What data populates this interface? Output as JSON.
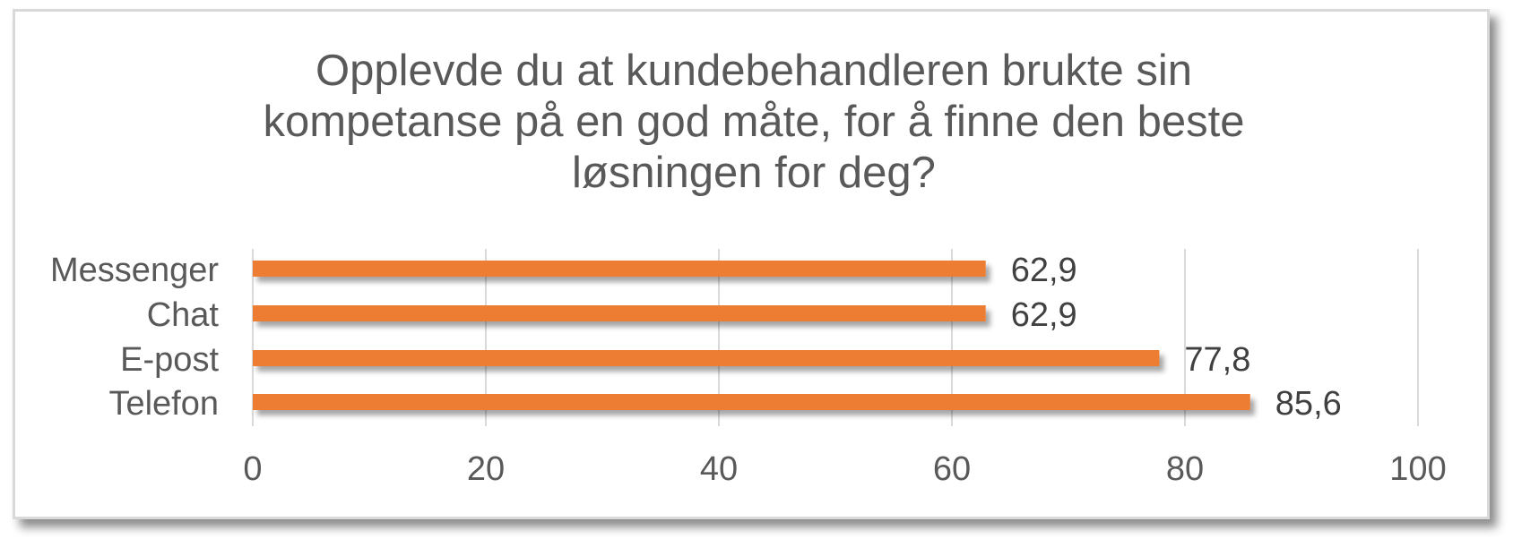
{
  "chart_data": {
    "type": "bar",
    "orientation": "horizontal",
    "title_lines": [
      "Opplevde du at kundebehandleren brukte sin",
      "kompetanse på en god måte, for å finne den beste",
      "løsningen for deg?"
    ],
    "categories": [
      "Messenger",
      "Chat",
      "E-post",
      "Telefon"
    ],
    "values": [
      62.9,
      62.9,
      77.8,
      85.6
    ],
    "data_labels": [
      "62,9",
      "62,9",
      "77,8",
      "85,6"
    ],
    "xlim": [
      0,
      100
    ],
    "xticks": [
      0,
      20,
      40,
      60,
      80,
      100
    ],
    "xtick_labels": [
      "0",
      "20",
      "40",
      "60",
      "80",
      "100"
    ],
    "grid": "vertical",
    "legend": "none",
    "bar_color": "#ED7D31",
    "grid_color": "#d9d9d9",
    "text_color": "#595959"
  }
}
